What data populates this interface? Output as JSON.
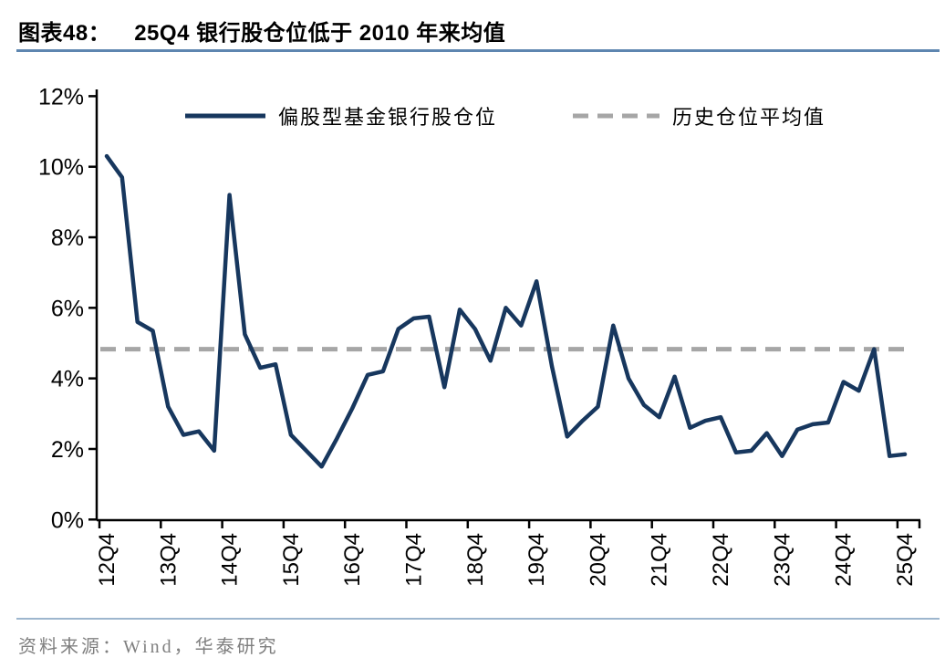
{
  "header": {
    "figure_label": "图表48：",
    "title": "25Q4 银行股仓位低于 2010 年来均值"
  },
  "footer": {
    "source": "资料来源：Wind，华泰研究"
  },
  "chart_data": {
    "type": "line",
    "title": "25Q4 银行股仓位低于 2010 年来均值",
    "categories": [
      "12Q4",
      "13Q1",
      "13Q2",
      "13Q3",
      "13Q4",
      "14Q1",
      "14Q2",
      "14Q3",
      "14Q4",
      "15Q1",
      "15Q2",
      "15Q3",
      "15Q4",
      "16Q1",
      "16Q2",
      "16Q3",
      "16Q4",
      "17Q1",
      "17Q2",
      "17Q3",
      "17Q4",
      "18Q1",
      "18Q2",
      "18Q3",
      "18Q4",
      "19Q1",
      "19Q2",
      "19Q3",
      "19Q4",
      "20Q1",
      "20Q2",
      "20Q3",
      "20Q4",
      "21Q1",
      "21Q2",
      "21Q3",
      "21Q4",
      "22Q1",
      "22Q2",
      "22Q3",
      "22Q4",
      "23Q1",
      "23Q2",
      "23Q3",
      "23Q4",
      "24Q1",
      "24Q2",
      "24Q3",
      "24Q4",
      "25Q1",
      "25Q2",
      "25Q3",
      "25Q4"
    ],
    "series": [
      {
        "name": "偏股型基金银行股仓位",
        "type": "solid-line",
        "color": "#17375e",
        "values": [
          10.3,
          9.7,
          5.6,
          5.35,
          3.2,
          2.4,
          2.5,
          1.95,
          9.2,
          5.25,
          4.3,
          4.4,
          2.4,
          1.95,
          1.5,
          2.3,
          3.15,
          4.1,
          4.2,
          5.4,
          5.7,
          5.75,
          3.75,
          5.95,
          5.4,
          4.5,
          6.0,
          5.5,
          6.75,
          4.35,
          2.35,
          2.8,
          3.2,
          5.5,
          4.0,
          3.25,
          2.9,
          4.05,
          2.6,
          2.8,
          2.9,
          1.9,
          1.95,
          2.45,
          1.8,
          2.55,
          2.7,
          2.75,
          3.9,
          3.65,
          4.83,
          1.8,
          1.85
        ]
      },
      {
        "name": "历史仓位平均值",
        "type": "dashed-constant",
        "color": "#a6a6a6",
        "constant": 4.83
      }
    ],
    "xlabel": "",
    "ylabel": "",
    "ylim": [
      0,
      12
    ],
    "ytick_step": 2,
    "ytick_suffix": "%",
    "xtick_labels_shown": [
      "12Q4",
      "13Q4",
      "14Q4",
      "15Q4",
      "16Q4",
      "17Q4",
      "18Q4",
      "19Q4",
      "20Q4",
      "21Q4",
      "22Q4",
      "23Q4",
      "24Q4",
      "25Q4"
    ],
    "xtick_label_rotation": -90,
    "grid": false,
    "legend_position": "top-center"
  }
}
